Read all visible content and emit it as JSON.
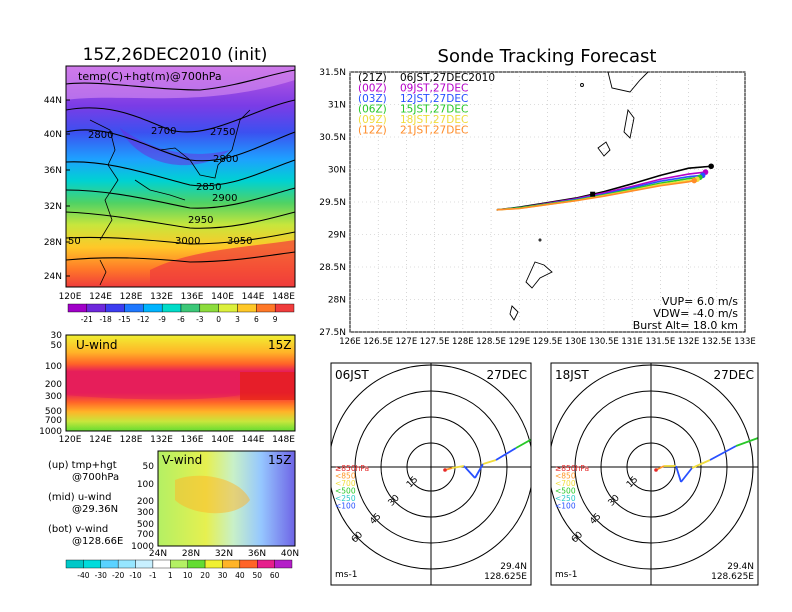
{
  "left_panel": {
    "title": "15Z,26DEC2010 (init)",
    "map_label": "temp(C)+hgt(m)@700hPa",
    "lat_labels": [
      "44N",
      "40N",
      "36N",
      "32N",
      "28N",
      "24N"
    ],
    "lon_labels": [
      "120E",
      "124E",
      "128E",
      "132E",
      "136E",
      "140E",
      "144E",
      "148E"
    ],
    "contour_labels": [
      "2800",
      "2700",
      "2750",
      "2800",
      "2850",
      "2900",
      "2950",
      "3000",
      "3050",
      "50"
    ],
    "temp_colorbar": [
      "-21",
      "-18",
      "-15",
      "-12",
      "-9",
      "-6",
      "-3",
      "0",
      "3",
      "6",
      "9"
    ],
    "temp_colors": [
      "#a000c8",
      "#6e28dc",
      "#3c3cf0",
      "#1e78ff",
      "#00b4ff",
      "#00dcc8",
      "#3cc878",
      "#8cdc3c",
      "#dcf03c",
      "#ffc828",
      "#ff7828",
      "#f03c3c"
    ]
  },
  "uwind_panel": {
    "title": "U-wind",
    "time": "15Z",
    "y_labels": [
      "30",
      "50",
      "100",
      "200",
      "300",
      "500",
      "700",
      "1000"
    ],
    "x_labels": [
      "120E",
      "124E",
      "128E",
      "132E",
      "136E",
      "140E",
      "144E",
      "148E"
    ]
  },
  "vwind_panel": {
    "title": "V-wind",
    "time": "15Z",
    "y_labels": [
      "50",
      "100",
      "200",
      "300",
      "500",
      "700",
      "1000"
    ],
    "x_labels": [
      "24N",
      "28N",
      "32N",
      "36N",
      "40N"
    ],
    "wind_colorbar": [
      "-40",
      "-30",
      "-20",
      "-10",
      "-1",
      "1",
      "10",
      "20",
      "30",
      "40",
      "50",
      "60"
    ],
    "wind_colors": [
      "#00c8c8",
      "#00dcdc",
      "#5ad2ff",
      "#96e6ff",
      "#c8f0ff",
      "#ffffff",
      "#b4f064",
      "#64dc32",
      "#f0f032",
      "#ffb428",
      "#ff6428",
      "#e61e8c",
      "#b41ec8"
    ]
  },
  "legend_notes": [
    {
      "line1": "(up) tmp+hgt",
      "line2": "@700hPa"
    },
    {
      "line1": "(mid) u-wind",
      "line2": "@29.36N"
    },
    {
      "line1": "(bot) v-wind",
      "line2": "@128.66E"
    }
  ],
  "forecast_panel": {
    "title": "Sonde Tracking Forecast",
    "lat_labels": [
      "31.5N",
      "31N",
      "30.5N",
      "30N",
      "29.5N",
      "29N",
      "28.5N",
      "28N",
      "27.5N"
    ],
    "lon_labels": [
      "126E",
      "126.5E",
      "127E",
      "127.5E",
      "128E",
      "128.5E",
      "129E",
      "129.5E",
      "130E",
      "130.5E",
      "131E",
      "131.5E",
      "132E",
      "132.5E",
      "133E"
    ],
    "runs": [
      {
        "code": "(21Z)",
        "label": "06JST,27DEC2010",
        "color": "#000000"
      },
      {
        "code": "(00Z)",
        "label": "09JST,27DEC",
        "color": "#b400c8"
      },
      {
        "code": "(03Z)",
        "label": "12JST,27DEC",
        "color": "#2850ff"
      },
      {
        "code": "(06Z)",
        "label": "15JST,27DEC",
        "color": "#28c828"
      },
      {
        "code": "(09Z)",
        "label": "18JST,27DEC",
        "color": "#f0dc3c"
      },
      {
        "code": "(12Z)",
        "label": "21JST,27DEC",
        "color": "#ff8c28"
      }
    ],
    "vup": "VUP= 6.0 m/s",
    "vdw": "VDW= -4.0 m/s",
    "burst": "Burst Alt= 18.0 km"
  },
  "polar_panels": [
    {
      "time": "06JST",
      "date": "27DEC",
      "lat": "29.4N",
      "lon": "128.625E",
      "unit": "ms-1"
    },
    {
      "time": "18JST",
      "date": "27DEC",
      "lat": "29.4N",
      "lon": "128.625E",
      "unit": "ms-1"
    }
  ],
  "polar_legend": [
    {
      "label": "≥850hPa",
      "color": "#e62828"
    },
    {
      "label": "<850",
      "color": "#ff9628"
    },
    {
      "label": "<700",
      "color": "#f0dc3c"
    },
    {
      "label": "<500",
      "color": "#28c828"
    },
    {
      "label": "<250",
      "color": "#28c8c8"
    },
    {
      "label": "<100",
      "color": "#2850ff"
    }
  ],
  "ring_labels": [
    "15",
    "30",
    "45",
    "60"
  ],
  "chart_data": [
    {
      "type": "line",
      "title": "Sonde Tracking Forecast",
      "xlim": [
        126,
        133
      ],
      "ylim": [
        27.5,
        31.5
      ],
      "series": [
        {
          "name": "(21Z) 06JST,27DEC2010",
          "x": [
            128.6,
            129.0,
            129.5,
            130.0,
            130.5,
            131.0,
            131.5,
            132.0,
            132.4
          ],
          "y": [
            29.38,
            29.42,
            29.49,
            29.56,
            29.66,
            29.78,
            29.91,
            30.02,
            30.05
          ]
        },
        {
          "name": "(00Z) 09JST,27DEC",
          "x": [
            128.6,
            129.0,
            129.5,
            130.0,
            130.5,
            131.0,
            131.5,
            132.0,
            132.3
          ],
          "y": [
            29.38,
            29.41,
            29.48,
            29.55,
            29.64,
            29.74,
            29.85,
            29.93,
            29.96
          ]
        },
        {
          "name": "(03Z) 12JST,27DEC",
          "x": [
            128.6,
            129.0,
            129.5,
            130.0,
            130.5,
            131.0,
            131.5,
            132.0,
            132.25
          ],
          "y": [
            29.38,
            29.41,
            29.47,
            29.54,
            29.62,
            29.72,
            29.82,
            29.89,
            29.91
          ]
        },
        {
          "name": "(06Z) 15JST,27DEC",
          "x": [
            128.6,
            129.0,
            129.5,
            130.0,
            130.5,
            131.0,
            131.5,
            132.0,
            132.2
          ],
          "y": [
            29.38,
            29.41,
            29.47,
            29.53,
            29.61,
            29.7,
            29.79,
            29.86,
            29.88
          ]
        },
        {
          "name": "(09Z) 18JST,27DEC",
          "x": [
            128.6,
            129.0,
            129.5,
            130.0,
            130.5,
            131.0,
            131.5,
            132.0,
            132.15
          ],
          "y": [
            29.38,
            29.4,
            29.46,
            29.52,
            29.6,
            29.68,
            29.77,
            29.83,
            29.85
          ]
        },
        {
          "name": "(12Z) 21JST,27DEC",
          "x": [
            128.6,
            129.0,
            129.5,
            130.0,
            130.5,
            131.0,
            131.5,
            132.0,
            132.1
          ],
          "y": [
            29.38,
            29.4,
            29.46,
            29.52,
            29.59,
            29.67,
            29.75,
            29.81,
            29.83
          ]
        }
      ]
    }
  ]
}
